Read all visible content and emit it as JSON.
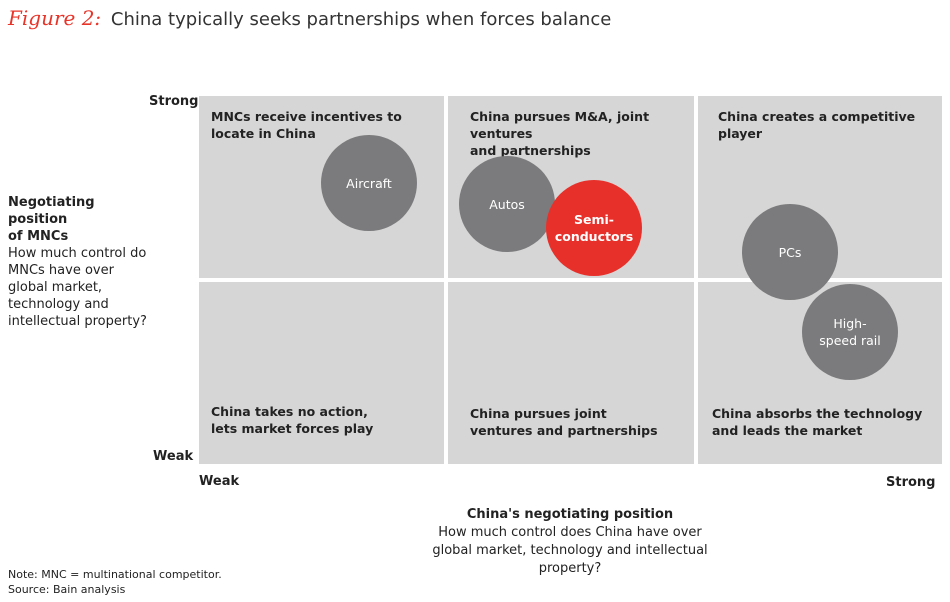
{
  "title": {
    "figure_label": "Figure 2:",
    "text": "China typically seeks partnerships when forces balance"
  },
  "y_axis": {
    "strong_label": "Strong",
    "weak_label": "Weak",
    "title_bold_line1": "Negotiating position",
    "title_bold_line2": "of MNCs",
    "description": "How much control do MNCs have over global market, technology and intellectual property?"
  },
  "x_axis": {
    "weak_label": "Weak",
    "strong_label": "Strong",
    "title_bold": "China's negotiating position",
    "description_line1": "How much control does China have over",
    "description_line2": "global market, technology and intellectual property?"
  },
  "quadrants": {
    "top_left": {
      "line1": "MNCs receive incentives to",
      "line2": "locate in China"
    },
    "top_middle": {
      "line1": "China pursues M&A, joint ventures",
      "line2": "and partnerships"
    },
    "top_right": {
      "line1": "China creates a competitive player"
    },
    "bottom_left": {
      "line1": "China takes no action,",
      "line2": "lets market forces play"
    },
    "bottom_middle": {
      "line1": "China pursues joint",
      "line2": "ventures and partnerships"
    },
    "bottom_right": {
      "line1": "China absorbs the technology",
      "line2": "and leads the market"
    }
  },
  "bubbles": {
    "aircraft": "Aircraft",
    "autos": "Autos",
    "semiconductors_line1": "Semi-",
    "semiconductors_line2": "conductors",
    "pcs": "PCs",
    "high_speed_rail_line1": "High-",
    "high_speed_rail_line2": "speed rail"
  },
  "colors": {
    "accent_red": "#e8302a",
    "bubble_grey": "#7b7b7d",
    "cell_grey": "#d6d6d6"
  },
  "footnote": {
    "note": "Note: MNC = multinational competitor.",
    "source": "Source: Bain analysis"
  }
}
